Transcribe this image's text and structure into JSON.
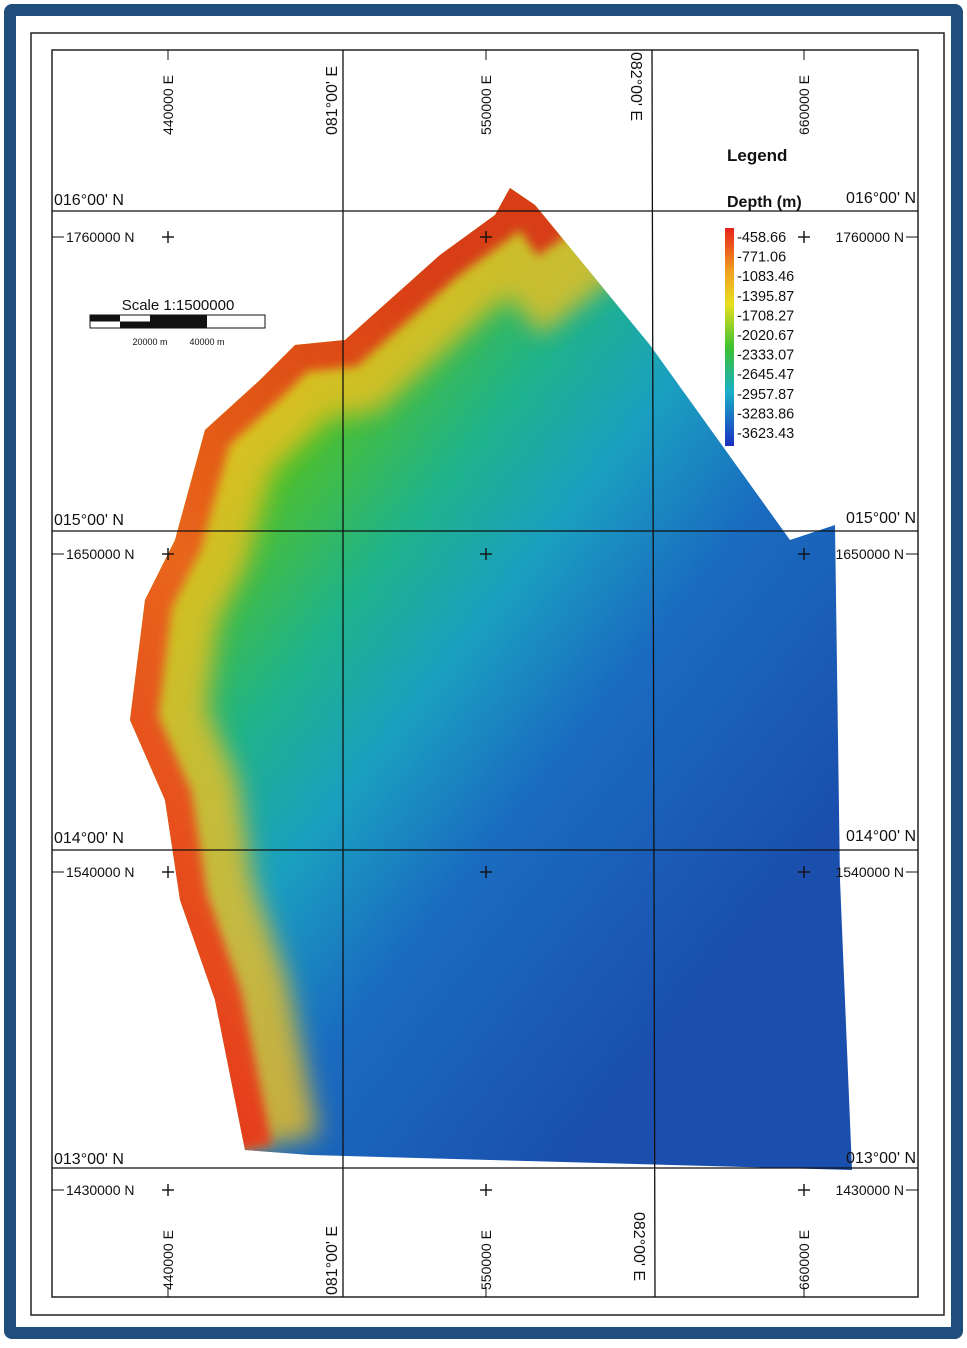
{
  "graticule": {
    "longitudes": [
      "081°00' E",
      "082°00' E"
    ],
    "latitudes": [
      "016°00' N",
      "015°00' N",
      "014°00' N",
      "013°00' N"
    ]
  },
  "grid": {
    "eastings": [
      "440000 E",
      "550000 E",
      "660000 E"
    ],
    "northings": [
      "1760000 N",
      "1650000 N",
      "1540000 N",
      "1430000 N"
    ]
  },
  "scale_bar": {
    "title": "Scale 1:1500000",
    "labels": [
      "20000 m",
      "40000 m"
    ]
  },
  "legend": {
    "title": "Legend",
    "field": "Depth (m)",
    "classes": [
      "-458.66",
      "-771.06",
      "-1083.46",
      "-1395.87",
      "-1708.27",
      "-2020.67",
      "-2333.07",
      "-2645.47",
      "-2957.87",
      "-3283.86",
      "-3623.43"
    ]
  }
}
